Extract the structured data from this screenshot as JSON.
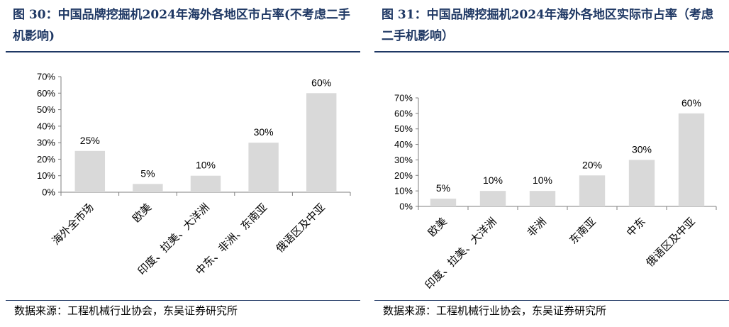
{
  "chart_data": [
    {
      "type": "bar",
      "title": "图 30：中国品牌挖掘机2024年海外各地区市占率(不考虑二手机影响)",
      "categories": [
        "海外全市场",
        "欧美",
        "印度、拉美、大洋洲",
        "中东、非洲、东南亚",
        "俄语区及中亚"
      ],
      "values": [
        25,
        5,
        10,
        30,
        60
      ],
      "data_labels": [
        "25%",
        "5%",
        "10%",
        "30%",
        "60%"
      ],
      "y_ticks": [
        "0%",
        "10%",
        "20%",
        "30%",
        "40%",
        "50%",
        "60%",
        "70%"
      ],
      "ylim": [
        0,
        70
      ],
      "xlabel": "",
      "ylabel": "",
      "grid": false,
      "colors": {
        "bar": "#d9d9d9",
        "axis": "#7f7f7f",
        "title": "#1f3864"
      },
      "source": "数据来源：工程机械行业协会，东吴证券研究所"
    },
    {
      "type": "bar",
      "title": "图 31：中国品牌挖掘机2024年海外各地区实际市占率（考虑二手机影响）",
      "categories": [
        "欧美",
        "印度、拉美、大洋洲",
        "非洲",
        "东南亚",
        "中东",
        "俄语区及中亚"
      ],
      "values": [
        5,
        10,
        10,
        20,
        30,
        60
      ],
      "data_labels": [
        "5%",
        "10%",
        "10%",
        "20%",
        "30%",
        "60%"
      ],
      "y_ticks": [
        "0%",
        "10%",
        "20%",
        "30%",
        "40%",
        "50%",
        "60%",
        "70%"
      ],
      "ylim": [
        0,
        70
      ],
      "xlabel": "",
      "ylabel": "",
      "grid": false,
      "colors": {
        "bar": "#d9d9d9",
        "axis": "#7f7f7f",
        "title": "#1f3864"
      },
      "source": "数据来源：工程机械行业协会，东吴证券研究所"
    }
  ]
}
